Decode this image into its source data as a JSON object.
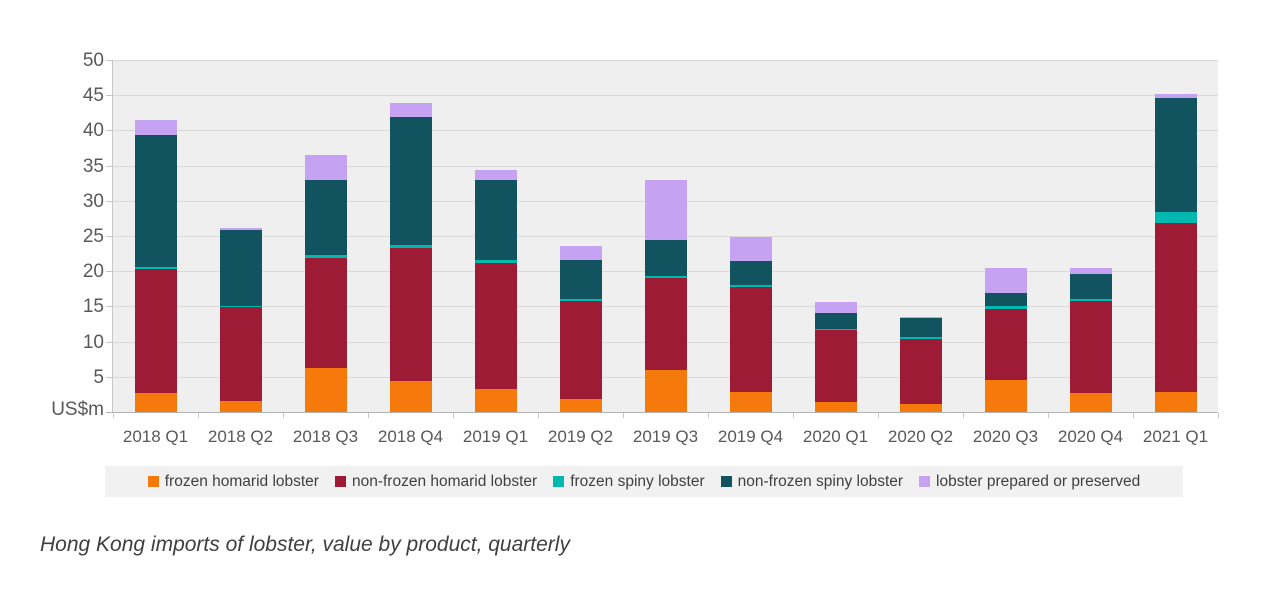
{
  "caption": "Hong Kong imports of lobster, value by product, quarterly",
  "chart_data": {
    "type": "bar",
    "stacked": true,
    "title": "",
    "xlabel": "",
    "ylabel": "US$m",
    "unit_label": "US$m",
    "ylim": [
      0,
      50
    ],
    "yticks": [
      5,
      10,
      15,
      20,
      25,
      30,
      35,
      40,
      45,
      50
    ],
    "grid": true,
    "legend_position": "bottom",
    "plot_bg": "#f0efef",
    "gridline_color": "#d9d9d9",
    "axis_text_color": "#595959",
    "categories": [
      "2018 Q1",
      "2018 Q2",
      "2018 Q3",
      "2018 Q4",
      "2019 Q1",
      "2019 Q2",
      "2019 Q3",
      "2019 Q4",
      "2020 Q1",
      "2020 Q2",
      "2020 Q3",
      "2020 Q4",
      "2021 Q1"
    ],
    "series": [
      {
        "name": "frozen homarid lobster",
        "color": "#F5790B",
        "values": [
          2.7,
          1.5,
          6.3,
          4.4,
          3.3,
          1.9,
          5.9,
          2.9,
          1.4,
          1.1,
          4.6,
          2.7,
          2.9
        ]
      },
      {
        "name": "non-frozen homarid lobster",
        "color": "#9E1B36",
        "values": [
          17.6,
          13.4,
          15.6,
          18.9,
          17.9,
          13.9,
          13.1,
          14.9,
          10.2,
          9.3,
          10.1,
          13.0,
          24.0
        ]
      },
      {
        "name": "frozen spiny lobster",
        "color": "#00B9AE",
        "values": [
          0.3,
          0.2,
          0.4,
          0.4,
          0.4,
          0.3,
          0.3,
          0.3,
          0.2,
          0.2,
          0.3,
          0.3,
          1.5
        ]
      },
      {
        "name": "non-frozen spiny lobster",
        "color": "#115460",
        "values": [
          18.7,
          10.7,
          10.6,
          18.2,
          11.3,
          5.5,
          5.2,
          3.4,
          2.3,
          2.7,
          1.9,
          3.6,
          16.2
        ]
      },
      {
        "name": "lobster prepared or preserved",
        "color": "#C6A2F2",
        "values": [
          2.2,
          0.3,
          3.6,
          2.0,
          1.5,
          2.0,
          8.4,
          3.4,
          1.6,
          0.2,
          3.5,
          0.9,
          0.6
        ]
      }
    ]
  }
}
